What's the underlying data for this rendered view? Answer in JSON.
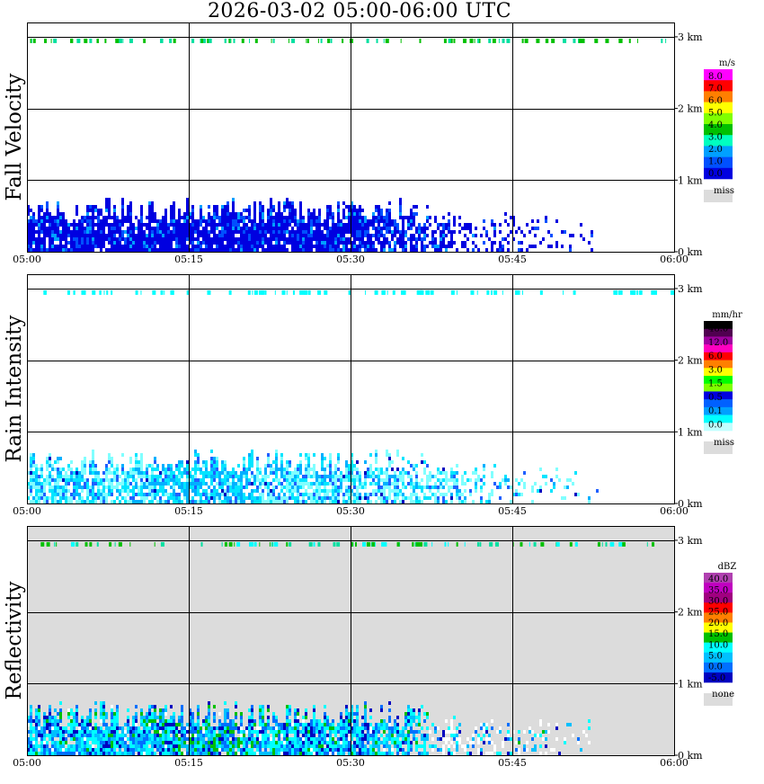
{
  "title": "2026-03-02   05:00-06:00 UTC",
  "chart_data": [
    {
      "type": "heatmap",
      "ylabel": "Fall Velocity",
      "x_ticks": [
        "05:00",
        "05:15",
        "05:30",
        "05:45",
        "06:00"
      ],
      "x_range_minutes": [
        0,
        60
      ],
      "y_ticks": [
        "0 km",
        "1 km",
        "2 km",
        "3 km"
      ],
      "y_range_km": [
        0,
        3.2
      ],
      "grid": true,
      "legend": {
        "unit": "m/s",
        "placement": "right",
        "levels": [
          "8.0",
          "7.0",
          "6.0",
          "5.0",
          "4.0",
          "3.0",
          "2.0",
          "1.0",
          "0.0"
        ],
        "colors": [
          "#ff00ff",
          "#ff0000",
          "#ff7f00",
          "#ffff00",
          "#80ff00",
          "#00c000",
          "#00ffc0",
          "#00a0ff",
          "#0050ff",
          "#0000e0"
        ],
        "miss_label": "miss",
        "miss_color": "#dcdcdc"
      },
      "background": "#ffffff",
      "echo_top_km": 0.78,
      "echo_end_minutes": 53,
      "echo_palette": [
        "#0000e0",
        "#0050ff",
        "#00a0ff"
      ]
    },
    {
      "type": "heatmap",
      "ylabel": "Rain Intensity",
      "x_ticks": [
        "05:00",
        "05:15",
        "05:30",
        "05:45",
        "06:00"
      ],
      "x_range_minutes": [
        0,
        60
      ],
      "y_ticks": [
        "0 km",
        "1 km",
        "2 km",
        "3 km"
      ],
      "y_range_km": [
        0,
        3.2
      ],
      "grid": true,
      "legend": {
        "unit": "mm/hr",
        "placement": "right",
        "levels": [
          "48.0",
          "12.0",
          "6.0",
          "3.0",
          "1.5",
          "0.5",
          "0.1",
          "0.0"
        ],
        "colors": [
          "#000000",
          "#500050",
          "#a000a0",
          "#ff00c0",
          "#ff0000",
          "#ff8000",
          "#ffff00",
          "#00ff00",
          "#80ff00",
          "#0000e0",
          "#0060ff",
          "#00a0ff",
          "#00ffff",
          "#c0ffff"
        ],
        "miss_label": "miss",
        "miss_color": "#dcdcdc"
      },
      "background": "#ffffff",
      "echo_top_km": 0.78,
      "echo_end_minutes": 53,
      "echo_palette": [
        "#80ffff",
        "#00e5ff",
        "#00b0ff",
        "#2060ff",
        "#0000c0"
      ]
    },
    {
      "type": "heatmap",
      "ylabel": "Reflectivity",
      "x_ticks": [
        "05:00",
        "05:15",
        "05:30",
        "05:45",
        "06:00"
      ],
      "x_range_minutes": [
        0,
        60
      ],
      "y_ticks": [
        "0 km",
        "1 km",
        "2 km",
        "3 km"
      ],
      "y_range_km": [
        0,
        3.2
      ],
      "grid": true,
      "legend": {
        "unit": "dBZ",
        "placement": "right",
        "levels": [
          "40.0",
          "35.0",
          "30.0",
          "25.0",
          "20.0",
          "15.0",
          "10.0",
          "5.0",
          "0.0",
          "-5.0"
        ],
        "colors": [
          "#b040b0",
          "#c000c0",
          "#a00080",
          "#ff0000",
          "#ff8000",
          "#ffff00",
          "#00c000",
          "#00ffff",
          "#00c0ff",
          "#0070ff",
          "#0000c0"
        ],
        "miss_label": "none",
        "miss_color": "#dcdcdc"
      },
      "background": "#dcdcdc",
      "echo_top_km": 0.78,
      "echo_end_minutes": 53,
      "echo_palette": [
        "#0000c0",
        "#0070ff",
        "#00c0ff",
        "#00ffff",
        "#00c000",
        "#ffffff"
      ]
    }
  ]
}
